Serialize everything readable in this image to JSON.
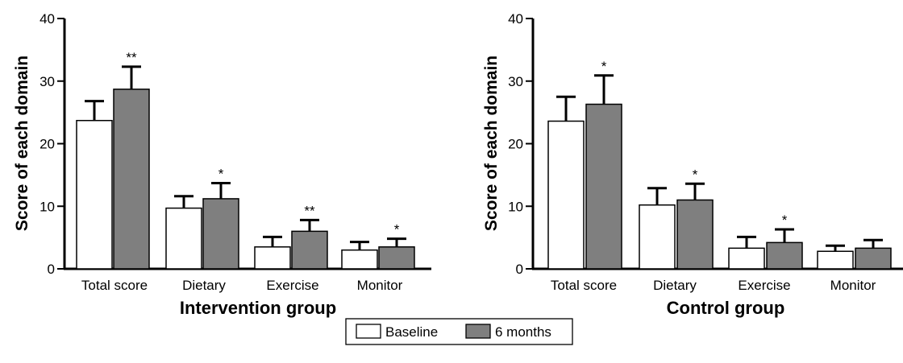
{
  "legend": {
    "entries": [
      {
        "label": "Baseline",
        "color": "#ffffff"
      },
      {
        "label": "6 months",
        "color": "#7f7f7f"
      }
    ]
  },
  "chart_data": [
    {
      "type": "bar",
      "xlabel": "Intervention group",
      "ylabel": "Score of each domain",
      "ylim": [
        0,
        40
      ],
      "yticks": [
        0,
        10,
        20,
        30,
        40
      ],
      "grid": false,
      "categories": [
        "Total score",
        "Dietary",
        "Exercise",
        "Monitor"
      ],
      "series": [
        {
          "name": "Baseline",
          "color": "#ffffff",
          "values": [
            23.7,
            9.7,
            3.5,
            3.0
          ],
          "error": [
            3.1,
            1.9,
            1.6,
            1.3
          ]
        },
        {
          "name": "6 months",
          "color": "#7f7f7f",
          "values": [
            28.7,
            11.2,
            6.0,
            3.5
          ],
          "error": [
            3.6,
            2.5,
            1.8,
            1.3
          ]
        }
      ],
      "significance": [
        [
          "",
          "**"
        ],
        [
          "",
          "*"
        ],
        [
          "",
          "**"
        ],
        [
          "",
          "*"
        ]
      ]
    },
    {
      "type": "bar",
      "xlabel": "Control group",
      "ylabel": "Score of each domain",
      "ylim": [
        0,
        40
      ],
      "yticks": [
        0,
        10,
        20,
        30,
        40
      ],
      "grid": false,
      "categories": [
        "Total score",
        "Dietary",
        "Exercise",
        "Monitor"
      ],
      "series": [
        {
          "name": "Baseline",
          "color": "#ffffff",
          "values": [
            23.6,
            10.2,
            3.3,
            2.8
          ],
          "error": [
            3.9,
            2.7,
            1.8,
            0.9
          ]
        },
        {
          "name": "6 months",
          "color": "#7f7f7f",
          "values": [
            26.3,
            11.0,
            4.2,
            3.3
          ],
          "error": [
            4.6,
            2.6,
            2.1,
            1.3
          ]
        }
      ],
      "significance": [
        [
          "",
          "*"
        ],
        [
          "",
          "*"
        ],
        [
          "",
          "*"
        ],
        [
          "",
          ""
        ]
      ]
    }
  ]
}
